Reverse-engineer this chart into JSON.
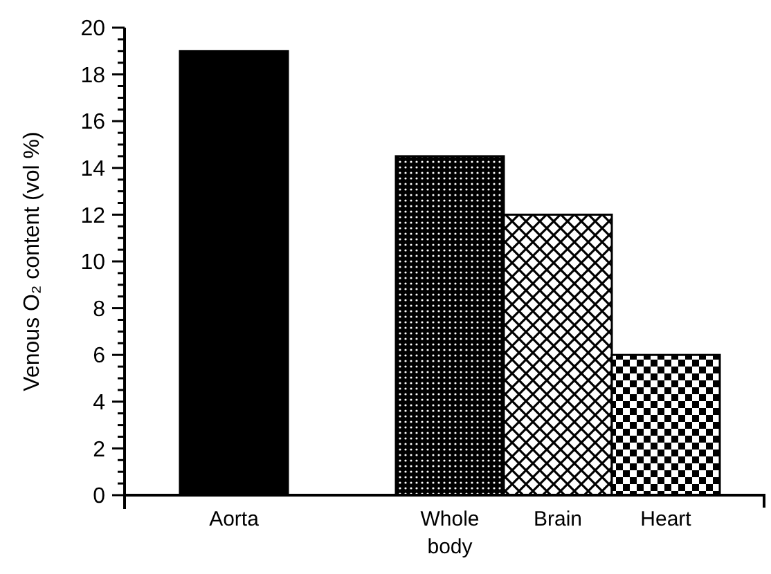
{
  "chart_data": {
    "type": "bar",
    "ylabel": "Venous O₂ content (vol %)",
    "categories": [
      "Aorta",
      null,
      "Whole body",
      "Brain",
      "Heart"
    ],
    "values": [
      19,
      null,
      14.5,
      12,
      6
    ],
    "colors": [
      "#000000",
      "#000000",
      "#000000",
      "#000000",
      "#000000"
    ],
    "ylim": [
      0,
      20
    ],
    "yticks": [
      0,
      {
        "value": 0.5,
        "label": null
      },
      {
        "value": 1,
        "label": null
      },
      {
        "value": 1.5,
        "label": null
      },
      2,
      {
        "value": 2.5,
        "label": null
      },
      {
        "value": 3,
        "label": null
      },
      {
        "value": 3.5,
        "label": null
      },
      4,
      {
        "value": 4.5,
        "label": null
      },
      {
        "value": 5,
        "label": null
      },
      {
        "value": 5.5,
        "label": null
      },
      6,
      {
        "value": 6.5,
        "label": null
      },
      {
        "value": 7,
        "label": null
      },
      {
        "value": 7.5,
        "label": null
      },
      8,
      {
        "value": 8.5,
        "label": null
      },
      {
        "value": 9,
        "label": null
      },
      {
        "value": 9.5,
        "label": null
      },
      10,
      {
        "value": 10.5,
        "label": null
      },
      {
        "value": 11,
        "label": null
      },
      {
        "value": 11.5,
        "label": null
      },
      12,
      {
        "value": 12.5,
        "label": null
      },
      {
        "value": 13,
        "label": null
      },
      {
        "value": 13.5,
        "label": null
      },
      14,
      {
        "value": 14.5,
        "label": null
      },
      {
        "value": 15,
        "label": null
      },
      {
        "value": 15.5,
        "label": null
      },
      16,
      {
        "value": 16.5,
        "label": null
      },
      {
        "value": 17,
        "label": null
      },
      {
        "value": 17.5,
        "label": null
      },
      18,
      {
        "value": 18.5,
        "label": null
      },
      {
        "value": 19,
        "label": null
      },
      {
        "value": 19.5,
        "label": null
      },
      20
    ],
    "grid": false
  }
}
